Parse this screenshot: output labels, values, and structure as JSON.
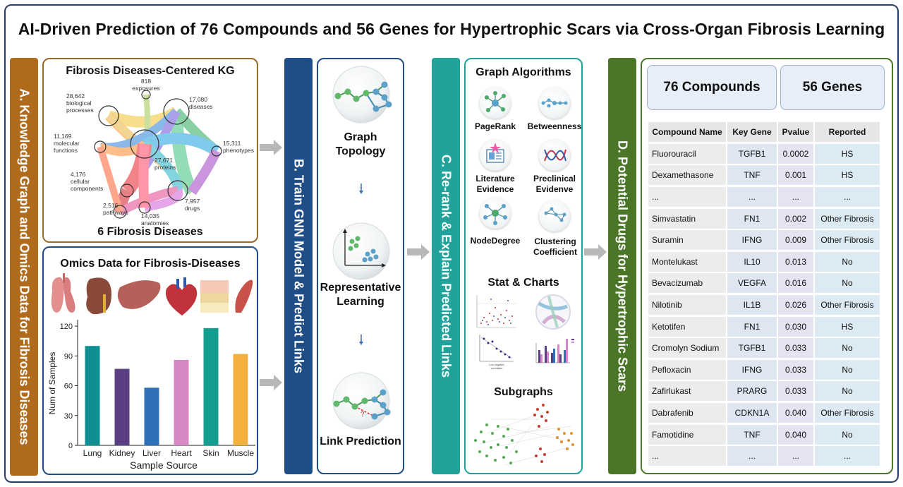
{
  "title": "AI-Driven Prediction of 76 Compounds and 56 Genes for Hypertrophic Scars via Cross-Organ Fibrosis Learning",
  "sections": {
    "a": "A. Knowledge Graph and Omics Data for Fibrosis Diseases",
    "b": "B. Train GNN Model & Predict Links",
    "c": "C. Re-rank & Explain Predicted Links",
    "d": "D. Potential Drugs for Hypertrophic Scars"
  },
  "kg": {
    "title": "Fibrosis Diseases-Centered KG",
    "subtitle": "6 Fibrosis Diseases",
    "nodes": [
      {
        "count": "818",
        "label": "exposures"
      },
      {
        "count": "28,642",
        "label": "biological processes"
      },
      {
        "count": "17,080",
        "label": "diseases"
      },
      {
        "count": "11,169",
        "label": "molecular functions"
      },
      {
        "count": "15,311",
        "label": "phenotypes"
      },
      {
        "count": "27,671",
        "label": "proteins"
      },
      {
        "count": "4,176",
        "label": "cellular components"
      },
      {
        "count": "2,516",
        "label": "pathways"
      },
      {
        "count": "7,957",
        "label": "drugs"
      },
      {
        "count": "14,035",
        "label": "anatomies"
      }
    ]
  },
  "omics": {
    "title": "Omics Data for Fibrosis-Diseases",
    "organ_icons": [
      "lung-icon",
      "kidney-icon",
      "liver-icon",
      "heart-icon",
      "skin-icon",
      "muscle-icon"
    ],
    "chart_data": {
      "type": "bar",
      "categories": [
        "Lung",
        "Kidney",
        "Liver",
        "Heart",
        "Skin",
        "Muscle"
      ],
      "values": [
        100,
        77,
        58,
        86,
        118,
        92
      ],
      "colors": [
        "#0f8f92",
        "#5a3f82",
        "#2f6fb5",
        "#d688c6",
        "#139e8f",
        "#f2b13e"
      ],
      "xlabel": "Sample Source",
      "ylabel": "Num of Samples",
      "ylim": [
        0,
        125
      ],
      "yticks": [
        0,
        30,
        60,
        90,
        120
      ]
    }
  },
  "train": {
    "steps": [
      "Graph Topology",
      "Representative Learning",
      "Link Prediction"
    ]
  },
  "rerank": {
    "graph_title": "Graph Algorithms",
    "algorithms": [
      "PageRank",
      "Betweenness",
      "Literature Evidence",
      "Preclinical Evidenve",
      "NodeDegree",
      "Clustering Coefficient"
    ],
    "stats_title": "Stat & Charts",
    "subgraphs_title": "Subgraphs"
  },
  "drugs": {
    "compounds_label": "76 Compounds",
    "genes_label": "56 Genes",
    "columns": [
      "Compound Name",
      "Key Gene",
      "Pvalue",
      "Reported"
    ],
    "rows": [
      [
        "Fluorouracil",
        "TGFB1",
        "0.0002",
        "HS"
      ],
      [
        "Dexamethasone",
        "TNF",
        "0.001",
        "HS"
      ],
      [
        "...",
        "...",
        "...",
        "..."
      ],
      [
        "Simvastatin",
        "FN1",
        "0.002",
        "Other Fibrosis"
      ],
      [
        "Suramin",
        "IFNG",
        "0.009",
        "Other Fibrosis"
      ],
      [
        "Montelukast",
        "IL10",
        "0.013",
        "No"
      ],
      [
        "Bevacizumab",
        "VEGFA",
        "0.016",
        "No"
      ],
      [
        "Nilotinib",
        "IL1B",
        "0.026",
        "Other Fibrosis"
      ],
      [
        "Ketotifen",
        "FN1",
        "0.030",
        "HS"
      ],
      [
        "Cromolyn Sodium",
        "TGFB1",
        "0.033",
        "No"
      ],
      [
        "Pefloxacin",
        "IFNG",
        "0.033",
        "No"
      ],
      [
        "Zafirlukast",
        "PRARG",
        "0.033",
        "No"
      ],
      [
        "Dabrafenib",
        "CDKN1A",
        "0.040",
        "Other Fibrosis"
      ],
      [
        "Famotidine",
        "TNF",
        "0.040",
        "No"
      ],
      [
        "...",
        "...",
        "...",
        "..."
      ]
    ]
  }
}
